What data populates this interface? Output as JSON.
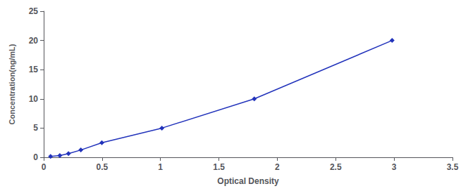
{
  "chart_data": {
    "type": "line",
    "x": [
      0.059,
      0.138,
      0.212,
      0.318,
      0.498,
      1.012,
      1.803,
      2.983
    ],
    "values": [
      0.156,
      0.312,
      0.625,
      1.25,
      2.5,
      5.0,
      10.0,
      20.0
    ],
    "color": "#2233BB",
    "marker": "diamond",
    "line_style": "solid",
    "xlabel": "Optical Density",
    "ylabel": "Concentration(ng/mL)",
    "xlim": [
      0,
      3.5
    ],
    "ylim": [
      0,
      25
    ],
    "xticks": [
      0,
      0.5,
      1,
      1.5,
      2,
      2.5,
      3,
      3.5
    ],
    "yticks": [
      0,
      5,
      10,
      15,
      20,
      25
    ],
    "grid": false
  }
}
